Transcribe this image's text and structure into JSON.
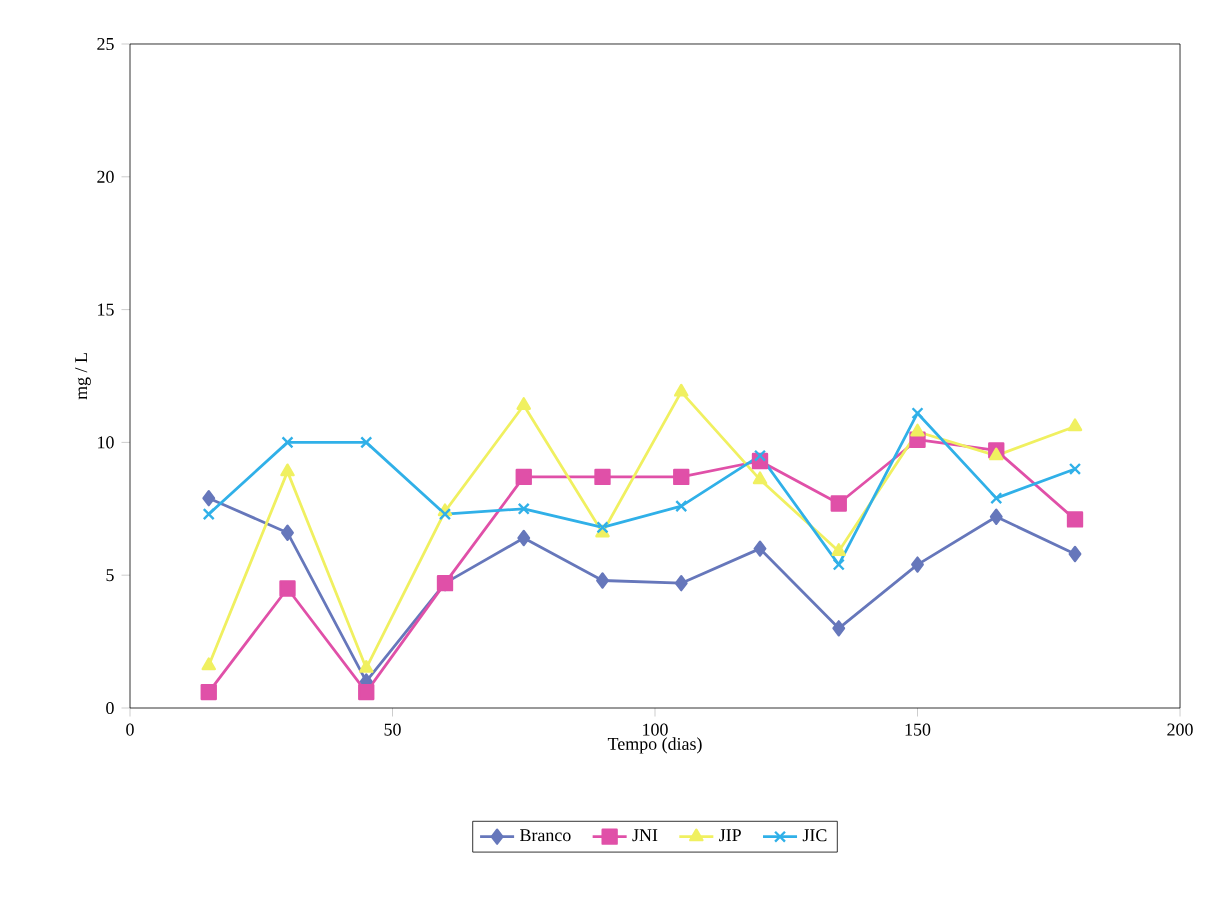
{
  "chart_data": {
    "type": "line",
    "xlabel": "Tempo (dias)",
    "ylabel": "mg / L",
    "x": [
      15,
      30,
      45,
      60,
      75,
      90,
      105,
      120,
      135,
      150,
      165,
      180
    ],
    "series": [
      {
        "name": "Branco",
        "color": "#6677bb",
        "marker": "diamond",
        "values": [
          7.9,
          6.6,
          1.0,
          4.7,
          6.4,
          4.8,
          4.7,
          6.0,
          3.0,
          5.4,
          7.2,
          5.8
        ]
      },
      {
        "name": "JNI",
        "color": "#e050a8",
        "marker": "square",
        "values": [
          0.6,
          4.5,
          0.6,
          4.7,
          8.7,
          8.7,
          8.7,
          9.3,
          7.7,
          10.1,
          9.7,
          7.1
        ]
      },
      {
        "name": "JIP",
        "color": "#f0f060",
        "marker": "triangle",
        "values": [
          1.6,
          8.9,
          1.5,
          7.4,
          11.4,
          6.6,
          11.9,
          8.6,
          5.9,
          10.4,
          9.5,
          10.6
        ]
      },
      {
        "name": "JIC",
        "color": "#30b0e8",
        "marker": "cross",
        "values": [
          7.3,
          10.0,
          10.0,
          7.3,
          7.5,
          6.8,
          7.6,
          9.5,
          5.4,
          11.1,
          7.9,
          9.0
        ]
      }
    ],
    "xlim": [
      0,
      200
    ],
    "xticks": [
      0,
      50,
      100,
      150,
      200
    ],
    "ylim": [
      0,
      25
    ],
    "yticks": [
      0,
      5,
      10,
      15,
      20,
      25
    ],
    "grid": false,
    "legend": "bottom",
    "line_style": "solid"
  }
}
